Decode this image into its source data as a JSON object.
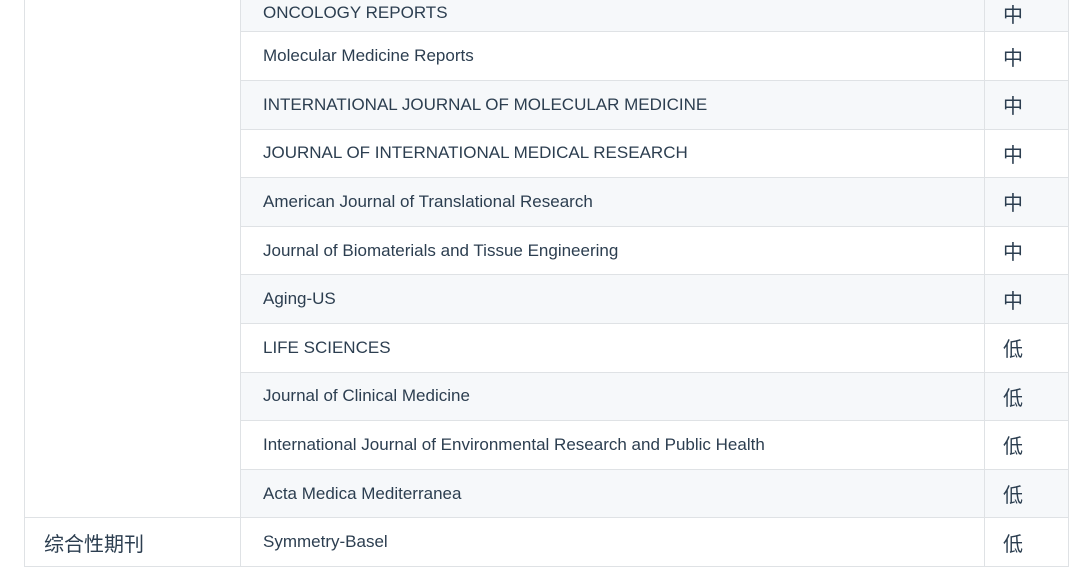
{
  "page": {
    "background_color": "#ffffff"
  },
  "table": {
    "colors": {
      "border": "#dfe2e5",
      "stripe": "#f6f8fa",
      "text": "#2c3e50",
      "cell_background": "#ffffff"
    },
    "category_groups": [
      {
        "label": "",
        "rows_spanned": 11
      },
      {
        "label": "综合性期刊",
        "rows_spanned": 1
      }
    ],
    "rows": [
      {
        "journal": "ONCOLOGY REPORTS",
        "level": "中"
      },
      {
        "journal": "Molecular Medicine Reports",
        "level": "中"
      },
      {
        "journal": "INTERNATIONAL JOURNAL OF MOLECULAR MEDICINE",
        "level": "中"
      },
      {
        "journal": "JOURNAL OF INTERNATIONAL MEDICAL RESEARCH",
        "level": "中"
      },
      {
        "journal": "American Journal of Translational Research",
        "level": "中"
      },
      {
        "journal": "Journal of Biomaterials and Tissue Engineering",
        "level": "中"
      },
      {
        "journal": "Aging-US",
        "level": "中"
      },
      {
        "journal": "LIFE SCIENCES",
        "level": "低"
      },
      {
        "journal": "Journal of Clinical Medicine",
        "level": "低"
      },
      {
        "journal": "International Journal of Environmental Research and Public Health",
        "level": "低"
      },
      {
        "journal": "Acta Medica Mediterranea",
        "level": "低"
      },
      {
        "journal": "Symmetry-Basel",
        "level": "低"
      }
    ]
  }
}
